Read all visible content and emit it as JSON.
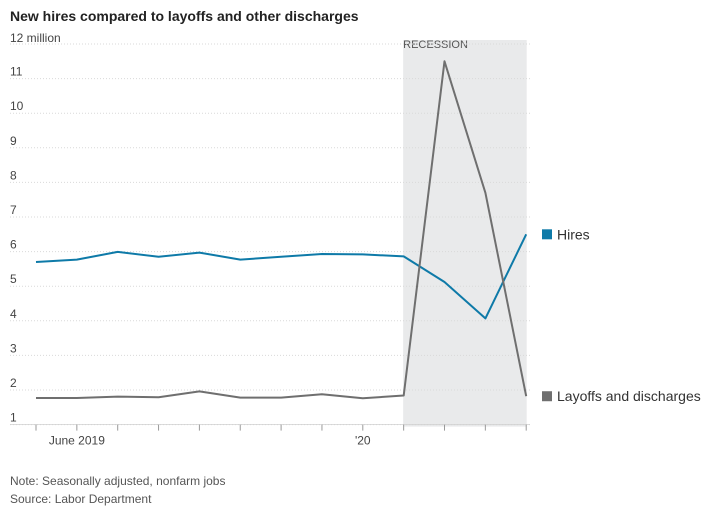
{
  "title": "New hires compared to layoffs and other discharges",
  "note": "Note: Seasonally adjusted, nonfarm jobs",
  "source": "Source: Labor Department",
  "colors": {
    "hires": "#0e7aa8",
    "layoffs": "#6f6f6f",
    "recession": "#e9eaeb",
    "grid": "#d9d9d9"
  },
  "chart_data": {
    "type": "line",
    "title": "New hires compared to layoffs and other discharges",
    "y_unit_label": "12 million",
    "ylim": [
      1,
      12
    ],
    "ytick_labels": [
      "1",
      "2",
      "3",
      "4",
      "5",
      "6",
      "7",
      "8",
      "9",
      "10",
      "11"
    ],
    "xtick_labels": [
      {
        "index": 1,
        "label": "June 2019"
      },
      {
        "index": 8,
        "label": "'20"
      }
    ],
    "grid": true,
    "recession": {
      "label": "RECESSION",
      "start_index": 9,
      "end_index": 12
    },
    "x": [
      "May 2019",
      "Jun 2019",
      "Jul 2019",
      "Aug 2019",
      "Sep 2019",
      "Oct 2019",
      "Nov 2019",
      "Dec 2019",
      "Jan 2020",
      "Feb 2020",
      "Mar 2020",
      "Apr 2020",
      "May 2020"
    ],
    "series": [
      {
        "name": "Hires",
        "key": "hires",
        "values": [
          5.7,
          5.77,
          5.99,
          5.85,
          5.97,
          5.77,
          5.85,
          5.93,
          5.92,
          5.86,
          5.12,
          4.07,
          6.5
        ]
      },
      {
        "name": "Layoffs and discharges",
        "key": "layoffs",
        "values": [
          1.77,
          1.77,
          1.81,
          1.79,
          1.96,
          1.78,
          1.78,
          1.88,
          1.76,
          1.84,
          11.5,
          7.7,
          1.82
        ]
      }
    ]
  }
}
